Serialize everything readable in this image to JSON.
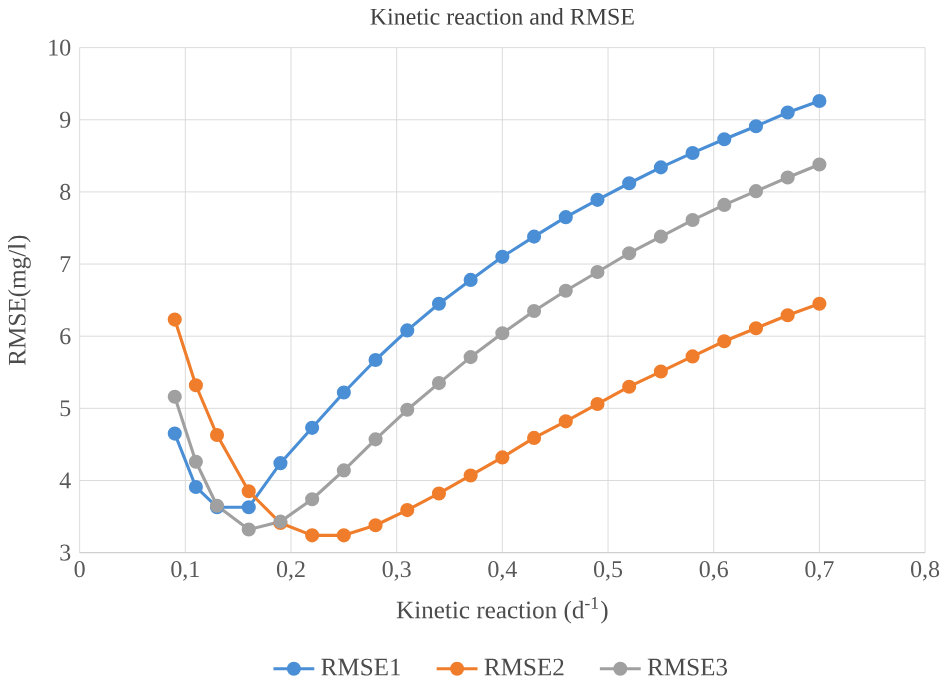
{
  "chart_data": {
    "type": "line",
    "title": "Kinetic reaction and RMSE",
    "xlabel": "Kinetic reaction (d$^{-1}$)",
    "ylabel": "RMSE(mg/l)",
    "x": [
      0.09,
      0.11,
      0.13,
      0.16,
      0.19,
      0.22,
      0.25,
      0.28,
      0.31,
      0.34,
      0.37,
      0.4,
      0.43,
      0.46,
      0.49,
      0.52,
      0.55,
      0.58,
      0.61,
      0.64,
      0.67,
      0.7
    ],
    "series": [
      {
        "name": "RMSE1",
        "color": "#4a8fd6",
        "values": [
          4.65,
          3.91,
          3.63,
          3.63,
          4.24,
          4.73,
          5.22,
          5.67,
          6.08,
          6.45,
          6.78,
          7.1,
          7.38,
          7.65,
          7.89,
          8.12,
          8.34,
          8.54,
          8.73,
          8.91,
          9.1,
          9.26
        ]
      },
      {
        "name": "RMSE2",
        "color": "#ef7d2b",
        "values": [
          6.23,
          5.32,
          4.63,
          3.85,
          3.41,
          3.24,
          3.24,
          3.38,
          3.59,
          3.82,
          4.07,
          4.32,
          4.59,
          4.82,
          5.06,
          5.3,
          5.51,
          5.72,
          5.93,
          6.11,
          6.29,
          6.45
        ]
      },
      {
        "name": "RMSE3",
        "color": "#a0a0a0",
        "values": [
          5.16,
          4.26,
          3.65,
          3.32,
          3.43,
          3.74,
          4.14,
          4.57,
          4.98,
          5.35,
          5.71,
          6.04,
          6.35,
          6.63,
          6.89,
          7.15,
          7.38,
          7.61,
          7.82,
          8.01,
          8.2,
          8.38
        ]
      }
    ],
    "xlim": [
      0,
      0.8
    ],
    "xticks": [
      0,
      {
        "value": 0.1,
        "label": "0,1"
      },
      {
        "value": 0.2,
        "label": "0,2"
      },
      {
        "value": 0.3,
        "label": "0,3"
      },
      {
        "value": 0.4,
        "label": "0,4"
      },
      {
        "value": 0.5,
        "label": "0,5"
      },
      {
        "value": 0.6,
        "label": "0,6"
      },
      {
        "value": 0.7,
        "label": "0,7"
      },
      {
        "value": 0.8,
        "label": "0,8"
      }
    ],
    "ylim": [
      3,
      10
    ],
    "yticks": [
      3,
      4,
      5,
      6,
      7,
      8,
      9,
      10
    ],
    "grid": true,
    "legend": "bottom",
    "marker": "circle",
    "line_style": "solid"
  }
}
